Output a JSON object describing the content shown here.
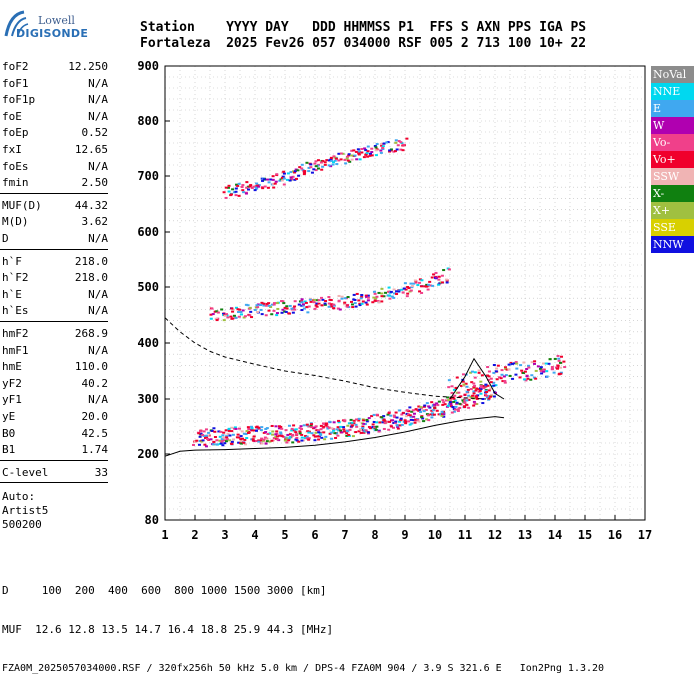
{
  "logo": {
    "line1": "Lowell",
    "line2": "DIGISONDE"
  },
  "header": {
    "row1": "Station    YYYY DAY   DDD HHMMSS P1  FFS S AXN PPS IGA PS",
    "row2": "Fortaleza  2025 Fev26 057 034000 RSF 005 2 713 100 10+ 22"
  },
  "params_group1": [
    {
      "k": "foF2",
      "v": "12.250"
    },
    {
      "k": "foF1",
      "v": "N/A"
    },
    {
      "k": "foF1p",
      "v": "N/A"
    },
    {
      "k": "foE",
      "v": "N/A"
    },
    {
      "k": "foEp",
      "v": "0.52"
    },
    {
      "k": "fxI",
      "v": "12.65"
    },
    {
      "k": "foEs",
      "v": "N/A"
    },
    {
      "k": "fmin",
      "v": "2.50"
    }
  ],
  "params_group2": [
    {
      "k": "MUF(D)",
      "v": "44.32"
    },
    {
      "k": "M(D)",
      "v": "3.62"
    },
    {
      "k": "D",
      "v": "N/A"
    }
  ],
  "params_group3": [
    {
      "k": "h`F",
      "v": "218.0"
    },
    {
      "k": "h`F2",
      "v": "218.0"
    },
    {
      "k": "h`E",
      "v": "N/A"
    },
    {
      "k": "h`Es",
      "v": "N/A"
    }
  ],
  "params_group4": [
    {
      "k": "hmF2",
      "v": "268.9"
    },
    {
      "k": "hmF1",
      "v": "N/A"
    },
    {
      "k": "hmE",
      "v": "110.0"
    },
    {
      "k": "yF2",
      "v": "40.2"
    },
    {
      "k": "yF1",
      "v": "N/A"
    },
    {
      "k": "yE",
      "v": "20.0"
    },
    {
      "k": "B0",
      "v": "42.5"
    },
    {
      "k": "B1",
      "v": "1.74"
    }
  ],
  "params_group5": [
    {
      "k": "C-level",
      "v": "33"
    }
  ],
  "autoscale": {
    "line1": "Auto:",
    "line2": "Artist5",
    "line3": "500200"
  },
  "legend": [
    {
      "label": "NoVal",
      "color": "#8c8c8c"
    },
    {
      "label": "NNE",
      "color": "#00d8f0"
    },
    {
      "label": "E",
      "color": "#40a8f0"
    },
    {
      "label": "W",
      "color": "#b000b0"
    },
    {
      "label": "Vo-",
      "color": "#f0408a"
    },
    {
      "label": "Vo+",
      "color": "#f0002c"
    },
    {
      "label": "SSW",
      "color": "#f0b4b4"
    },
    {
      "label": "X-",
      "color": "#108010"
    },
    {
      "label": "X+",
      "color": "#a0c040"
    },
    {
      "label": "SSE",
      "color": "#d8d000"
    },
    {
      "label": "NNW",
      "color": "#1010e0"
    }
  ],
  "footer": {
    "line1": "D     100  200  400  600  800 1000 1500 3000 [km]",
    "line2": "MUF  12.6 12.8 13.5 14.7 16.4 18.8 25.9 44.3 [MHz]",
    "line3": "FZA0M_2025057034000.RSF / 320fx256h 50 kHz 5.0 km / DPS-4 FZA0M 904 / 3.9 S 321.6 E   Ion2Png 1.3.20"
  },
  "chart_data": {
    "type": "scatter",
    "xlim": [
      1,
      17
    ],
    "ylim": [
      80,
      900
    ],
    "x_ticks": [
      1,
      2,
      3,
      4,
      5,
      6,
      7,
      8,
      9,
      10,
      11,
      12,
      13,
      14,
      15,
      16,
      17
    ],
    "y_ticks": [
      80,
      200,
      300,
      400,
      500,
      600,
      700,
      800,
      900
    ],
    "grid": true,
    "echo_traces": [
      {
        "name": "F2 O-trace",
        "x": [
          2.0,
          2.5,
          3.0,
          3.5,
          4.0,
          4.5,
          5.0,
          5.5,
          6.0,
          6.5,
          7.0,
          7.5,
          8.0,
          8.5,
          9.0,
          9.5,
          10.0,
          10.5,
          11.0,
          11.5,
          12.0
        ],
        "y": [
          232,
          232,
          234,
          234,
          236,
          237,
          238,
          240,
          242,
          245,
          248,
          252,
          258,
          262,
          268,
          275,
          282,
          290,
          300,
          310,
          320
        ]
      },
      {
        "name": "second hop",
        "x": [
          2.5,
          3.0,
          3.5,
          4.0,
          4.5,
          5.0,
          5.5,
          6.0,
          6.5,
          7.0,
          7.5,
          8.0,
          8.5,
          9.0,
          9.5,
          10.0,
          10.4
        ],
        "y": [
          452,
          455,
          458,
          460,
          463,
          465,
          468,
          470,
          472,
          475,
          480,
          485,
          490,
          497,
          505,
          515,
          525
        ]
      },
      {
        "name": "third hop",
        "x": [
          3.0,
          3.5,
          4.0,
          4.5,
          5.0,
          5.5,
          6.0,
          6.5,
          7.0,
          7.5,
          8.0,
          8.5,
          9.0
        ],
        "y": [
          672,
          678,
          685,
          690,
          700,
          710,
          720,
          728,
          735,
          742,
          748,
          755,
          762
        ]
      },
      {
        "name": "X trace",
        "x": [
          10.5,
          11.0,
          11.5,
          12.0,
          12.5,
          13.0,
          13.5,
          14.0,
          14.3
        ],
        "y": [
          320,
          330,
          340,
          345,
          350,
          352,
          355,
          360,
          365
        ]
      }
    ],
    "profile_dashed": {
      "x": [
        1.0,
        1.5,
        2.0,
        2.5,
        3.0,
        4.0,
        5.0,
        6.0,
        7.0,
        8.0,
        9.0,
        10.0,
        11.0,
        11.7
      ],
      "y": [
        445,
        420,
        400,
        385,
        375,
        362,
        350,
        342,
        332,
        320,
        312,
        305,
        302,
        300
      ]
    },
    "profile_solid": {
      "x": [
        1.0,
        1.5,
        2.0,
        3.0,
        4.0,
        5.0,
        6.0,
        7.0,
        8.0,
        9.0,
        10.0,
        11.0,
        12.0,
        12.3
      ],
      "y": [
        196,
        205,
        207,
        208,
        210,
        212,
        216,
        222,
        230,
        240,
        252,
        262,
        268,
        266
      ]
    },
    "trace_peak": {
      "x": [
        10.5,
        11.0,
        11.3,
        11.7,
        12.0,
        12.3
      ],
      "y": [
        300,
        340,
        372,
        340,
        310,
        300
      ]
    }
  }
}
